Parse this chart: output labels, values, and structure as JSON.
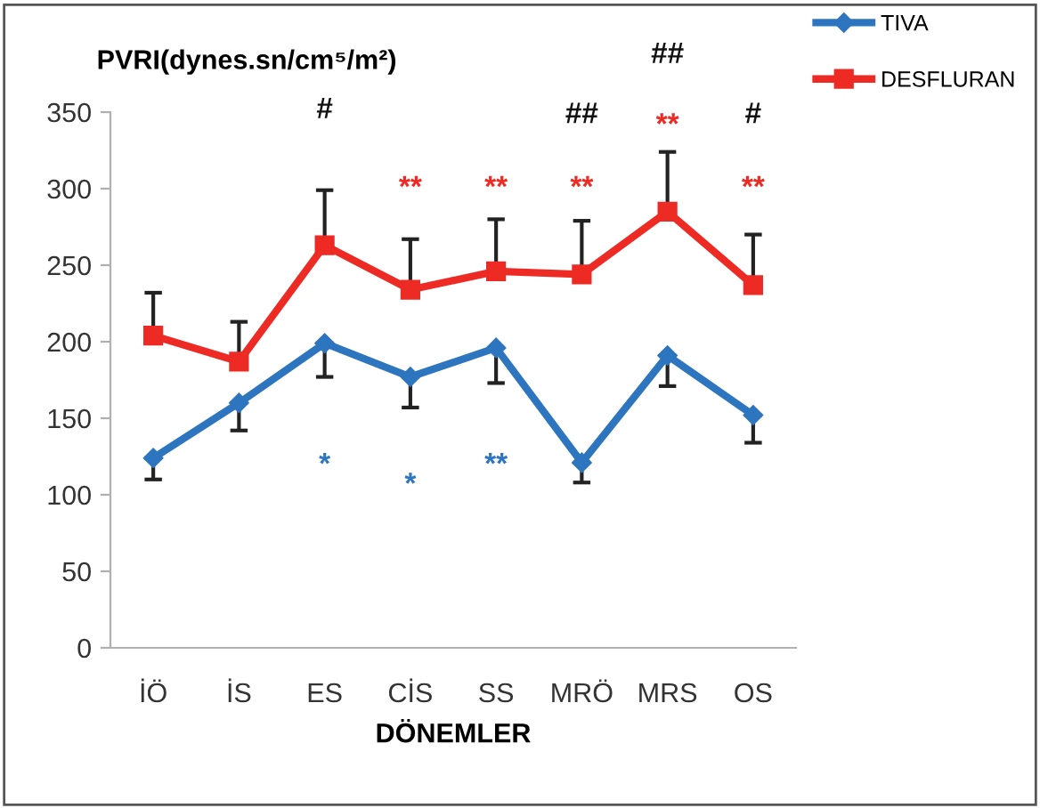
{
  "chart_data": {
    "type": "line",
    "ylabel": "PVRI(dynes.sn/cm⁵/m²)",
    "xlabel": "DÖNEMLER",
    "categories": [
      "İÖ",
      "İS",
      "ES",
      "CİS",
      "SS",
      "MRÖ",
      "MRS",
      "OS"
    ],
    "series": [
      {
        "name": "TIVA",
        "color": "#2e75c0",
        "marker": "diamond",
        "values": [
          124,
          160,
          199,
          177,
          196,
          121,
          191,
          152
        ],
        "errors": [
          [
            110,
            124
          ],
          [
            142,
            160
          ],
          [
            177,
            199
          ],
          [
            157,
            177
          ],
          [
            173,
            196
          ],
          [
            108,
            121
          ],
          [
            171,
            191
          ],
          [
            134,
            152
          ]
        ]
      },
      {
        "name": "DESFLURAN",
        "color": "#ee2a24",
        "marker": "square",
        "values": [
          204,
          187,
          263,
          234,
          246,
          244,
          285,
          237
        ],
        "errors": [
          [
            204,
            232
          ],
          [
            187,
            213
          ],
          [
            263,
            299
          ],
          [
            234,
            267
          ],
          [
            246,
            280
          ],
          [
            244,
            279
          ],
          [
            285,
            324
          ],
          [
            237,
            270
          ]
        ]
      }
    ],
    "ylim": [
      0,
      350
    ],
    "yticks": [
      0,
      50,
      100,
      150,
      200,
      250,
      300,
      350
    ],
    "legend": "top right",
    "annotations": [
      "#",
      "**",
      "**",
      "**",
      "##",
      "**",
      "##",
      "**",
      "#",
      "*",
      "*",
      "**"
    ]
  }
}
